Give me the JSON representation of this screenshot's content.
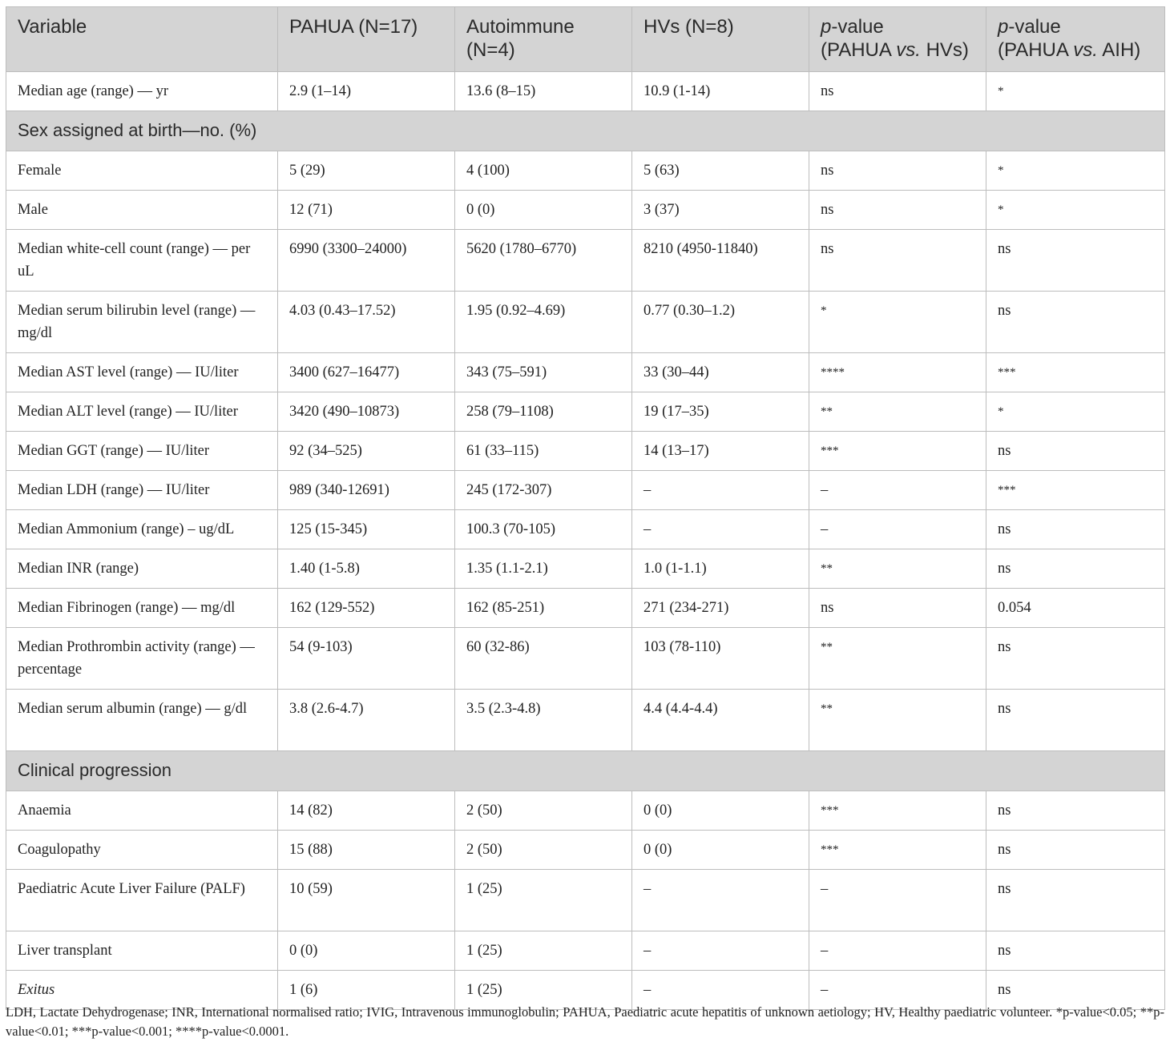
{
  "table": {
    "headers": [
      "Variable",
      "PAHUA (N=17)",
      "Autoimmune (N=4)",
      "HVs (N=8)",
      {
        "prefix": "p",
        "text": "-value (PAHUA ",
        "vs": "vs.",
        "suffix": " HVs)"
      },
      {
        "prefix": "p",
        "text": "-value (PAHUA ",
        "vs": "vs.",
        "suffix": " AIH)"
      }
    ],
    "header_p1": "p",
    "header_p1_rest": "-value",
    "header_p1_line2a": "(PAHUA ",
    "header_p1_vs": "vs.",
    "header_p1_line2b": " HVs)",
    "header_p2": "p",
    "header_p2_rest": "-value",
    "header_p2_line2a": "(PAHUA ",
    "header_p2_vs": "vs.",
    "header_p2_line2b": " AIH)",
    "rows": [
      {
        "type": "data",
        "cells": [
          "Median age (range) — yr",
          "2.9 (1–14)",
          "13.6 (8–15)",
          "10.9 (1-14)",
          "ns",
          "*"
        ]
      },
      {
        "type": "section",
        "label": "Sex assigned at birth—no. (%)"
      },
      {
        "type": "data",
        "cells": [
          "Female",
          "5 (29)",
          "4 (100)",
          "5 (63)",
          "ns",
          "*"
        ]
      },
      {
        "type": "data",
        "cells": [
          "Male",
          "12 (71)",
          "0 (0)",
          "3 (37)",
          "ns",
          "*"
        ]
      },
      {
        "type": "data",
        "cells": [
          "Median white-cell count (range) — per uL",
          "6990 (3300–24000)",
          "5620 (1780–6770)",
          "8210 (4950-11840)",
          "ns",
          "ns"
        ]
      },
      {
        "type": "data",
        "cells": [
          "Median serum bilirubin level (range) — mg/dl",
          "4.03 (0.43–17.52)",
          "1.95 (0.92–4.69)",
          "0.77 (0.30–1.2)",
          "*",
          "ns"
        ]
      },
      {
        "type": "data",
        "cells": [
          "Median AST level (range) — IU/liter",
          "3400 (627–16477)",
          "343 (75–591)",
          "33 (30–44)",
          "****",
          "***"
        ]
      },
      {
        "type": "data",
        "cells": [
          "Median ALT level (range) — IU/liter",
          "3420 (490–10873)",
          "258 (79–1108)",
          "19 (17–35)",
          "**",
          "*"
        ]
      },
      {
        "type": "data",
        "cells": [
          "Median GGT (range) — IU/liter",
          "92 (34–525)",
          "61 (33–115)",
          "14 (13–17)",
          "***",
          "ns"
        ]
      },
      {
        "type": "data",
        "cells": [
          "Median LDH (range) — IU/liter",
          "989 (340-12691)",
          "245 (172-307)",
          "–",
          "–",
          "***"
        ]
      },
      {
        "type": "data",
        "cells": [
          "Median Ammonium (range) – ug/dL",
          "125 (15-345)",
          "100.3 (70-105)",
          "–",
          "–",
          "ns"
        ]
      },
      {
        "type": "data",
        "cells": [
          "Median INR (range)",
          "1.40 (1-5.8)",
          "1.35 (1.1-2.1)",
          "1.0 (1-1.1)",
          "**",
          "ns"
        ]
      },
      {
        "type": "data",
        "cells": [
          "Median Fibrinogen (range) — mg/dl",
          "162 (129-552)",
          "162 (85-251)",
          "271 (234-271)",
          "ns",
          "0.054"
        ]
      },
      {
        "type": "data",
        "cells": [
          "Median Prothrombin activity (range) — percentage",
          "54 (9-103)",
          "60 (32-86)",
          "103 (78-110)",
          "**",
          "ns"
        ]
      },
      {
        "type": "data",
        "cells": [
          "Median serum albumin (range) — g/dl",
          "3.8 (2.6-4.7)",
          "3.5 (2.3-4.8)",
          "4.4 (4.4-4.4)",
          "**",
          "ns"
        ]
      },
      {
        "type": "section",
        "label": "Clinical progression"
      },
      {
        "type": "data",
        "cells": [
          "Anaemia",
          "14 (82)",
          "2 (50)",
          "0 (0)",
          "***",
          "ns"
        ]
      },
      {
        "type": "data",
        "cells": [
          "Coagulopathy",
          "15 (88)",
          "2 (50)",
          "0 (0)",
          "***",
          "ns"
        ]
      },
      {
        "type": "data",
        "cells": [
          "Paediatric Acute Liver Failure (PALF)",
          "10 (59)",
          "1 (25)",
          "–",
          "–",
          "ns"
        ]
      },
      {
        "type": "data",
        "cells": [
          "Liver transplant",
          "0 (0)",
          "1 (25)",
          "–",
          "–",
          "ns"
        ]
      },
      {
        "type": "data",
        "cells": [
          "Exitus",
          "1 (6)",
          "1 (25)",
          "–",
          "–",
          "ns"
        ],
        "italic_first": true
      }
    ]
  },
  "footnote": "LDH, Lactate Dehydrogenase; INR, International normalised ratio; IVIG, Intravenous immunoglobulin; PAHUA, Paediatric acute hepatitis of unknown aetiology; HV, Healthy paediatric volunteer. *p-value<0.05; **p-value<0.01; ***p-value<0.001; ****p-value<0.0001."
}
